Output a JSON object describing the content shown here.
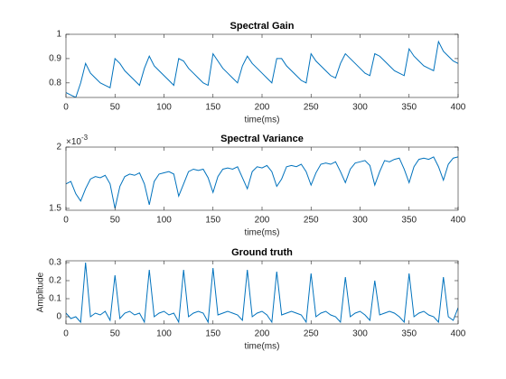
{
  "chart_data": [
    {
      "type": "line",
      "title": "Spectral Gain",
      "xlabel": "time(ms)",
      "x": [
        0,
        5,
        10,
        15,
        20,
        25,
        30,
        35,
        40,
        45,
        50,
        55,
        60,
        65,
        70,
        75,
        80,
        85,
        90,
        95,
        100,
        105,
        110,
        115,
        120,
        125,
        130,
        135,
        140,
        145,
        150,
        155,
        160,
        165,
        170,
        175,
        180,
        185,
        190,
        195,
        200,
        205,
        210,
        215,
        220,
        225,
        230,
        235,
        240,
        245,
        250,
        255,
        260,
        265,
        270,
        275,
        280,
        285,
        290,
        295,
        300,
        305,
        310,
        315,
        320,
        325,
        330,
        335,
        340,
        345,
        350,
        355,
        360,
        365,
        370,
        375,
        380,
        385,
        390,
        395,
        400
      ],
      "values": [
        0.76,
        0.75,
        0.74,
        0.8,
        0.88,
        0.84,
        0.82,
        0.8,
        0.79,
        0.78,
        0.9,
        0.88,
        0.85,
        0.83,
        0.81,
        0.79,
        0.86,
        0.91,
        0.87,
        0.85,
        0.83,
        0.81,
        0.79,
        0.9,
        0.89,
        0.86,
        0.84,
        0.82,
        0.8,
        0.79,
        0.92,
        0.89,
        0.86,
        0.84,
        0.82,
        0.8,
        0.87,
        0.91,
        0.88,
        0.86,
        0.84,
        0.82,
        0.8,
        0.9,
        0.9,
        0.87,
        0.85,
        0.83,
        0.81,
        0.8,
        0.92,
        0.89,
        0.87,
        0.85,
        0.83,
        0.82,
        0.88,
        0.92,
        0.9,
        0.88,
        0.86,
        0.84,
        0.83,
        0.92,
        0.91,
        0.89,
        0.87,
        0.85,
        0.84,
        0.83,
        0.94,
        0.91,
        0.89,
        0.87,
        0.86,
        0.85,
        0.97,
        0.93,
        0.91,
        0.89,
        0.88
      ],
      "color": "#0072bd",
      "xlim": [
        0,
        400
      ],
      "xticks": [
        0,
        50,
        100,
        150,
        200,
        250,
        300,
        350,
        400
      ],
      "ylim": [
        0.74,
        1
      ],
      "yticks": [
        0.8,
        0.9,
        1
      ]
    },
    {
      "type": "line",
      "title": "Spectral Variance",
      "xlabel": "time(ms)",
      "y_multiplier": {
        "base": "×10",
        "exponent": "-3"
      },
      "x": [
        0,
        5,
        10,
        15,
        20,
        25,
        30,
        35,
        40,
        45,
        50,
        55,
        60,
        65,
        70,
        75,
        80,
        85,
        90,
        95,
        100,
        105,
        110,
        115,
        120,
        125,
        130,
        135,
        140,
        145,
        150,
        155,
        160,
        165,
        170,
        175,
        180,
        185,
        190,
        195,
        200,
        205,
        210,
        215,
        220,
        225,
        230,
        235,
        240,
        245,
        250,
        255,
        260,
        265,
        270,
        275,
        280,
        285,
        290,
        295,
        300,
        305,
        310,
        315,
        320,
        325,
        330,
        335,
        340,
        345,
        350,
        355,
        360,
        365,
        370,
        375,
        380,
        385,
        390,
        395,
        400
      ],
      "values": [
        0.0017,
        0.00172,
        0.00162,
        0.00156,
        0.00166,
        0.00174,
        0.00176,
        0.00175,
        0.00177,
        0.0017,
        0.0015,
        0.00168,
        0.00176,
        0.00178,
        0.00177,
        0.00179,
        0.0017,
        0.00153,
        0.00172,
        0.00178,
        0.00179,
        0.0018,
        0.00178,
        0.0016,
        0.0017,
        0.0018,
        0.00182,
        0.00181,
        0.00182,
        0.00175,
        0.00163,
        0.00176,
        0.00182,
        0.00183,
        0.00182,
        0.00184,
        0.00175,
        0.00166,
        0.0018,
        0.00184,
        0.00183,
        0.00185,
        0.0018,
        0.00168,
        0.00174,
        0.00184,
        0.00185,
        0.00184,
        0.00186,
        0.0018,
        0.00169,
        0.00179,
        0.00186,
        0.00187,
        0.00186,
        0.00188,
        0.0018,
        0.00171,
        0.00182,
        0.00187,
        0.00188,
        0.00189,
        0.00185,
        0.00169,
        0.0018,
        0.00189,
        0.00188,
        0.0019,
        0.00191,
        0.00182,
        0.00171,
        0.00184,
        0.0019,
        0.00191,
        0.0019,
        0.00192,
        0.00184,
        0.00173,
        0.00186,
        0.00191,
        0.00192
      ],
      "color": "#0072bd",
      "xlim": [
        0,
        400
      ],
      "xticks": [
        0,
        50,
        100,
        150,
        200,
        250,
        300,
        350,
        400
      ],
      "ylim": [
        0.001485,
        0.002
      ],
      "yticks": [
        {
          "value": 0.0015,
          "label": "1.5"
        },
        {
          "value": 0.002,
          "label": "2"
        }
      ]
    },
    {
      "type": "line",
      "title": "Ground truth",
      "xlabel": "time(ms)",
      "ylabel": "Amplitude",
      "x": [
        0,
        5,
        10,
        15,
        20,
        25,
        30,
        35,
        40,
        45,
        50,
        55,
        60,
        65,
        70,
        75,
        80,
        85,
        90,
        95,
        100,
        105,
        110,
        115,
        120,
        125,
        130,
        135,
        140,
        145,
        150,
        155,
        160,
        165,
        170,
        175,
        180,
        185,
        190,
        195,
        200,
        205,
        210,
        215,
        220,
        225,
        230,
        235,
        240,
        245,
        250,
        255,
        260,
        265,
        270,
        275,
        280,
        285,
        290,
        295,
        300,
        305,
        310,
        315,
        320,
        325,
        330,
        335,
        340,
        345,
        350,
        355,
        360,
        365,
        370,
        375,
        380,
        385,
        390,
        395,
        400
      ],
      "values": [
        0.02,
        -0.01,
        0,
        -0.03,
        0.3,
        0,
        0.02,
        0.01,
        0.03,
        -0.02,
        0.23,
        -0.01,
        0.02,
        0.03,
        0.01,
        0.02,
        -0.03,
        0.26,
        0,
        0.02,
        0.03,
        0.01,
        0.02,
        -0.03,
        0.26,
        0,
        0.02,
        0.03,
        0.02,
        -0.03,
        0.27,
        0.01,
        0.02,
        0.03,
        0.02,
        0.01,
        -0.02,
        0.26,
        0,
        0.02,
        0.03,
        0.01,
        -0.03,
        0.25,
        0.01,
        0.02,
        0.03,
        0.02,
        0.01,
        -0.03,
        0.24,
        0,
        0.02,
        0.03,
        0.01,
        0,
        -0.03,
        0.22,
        0,
        0.02,
        0.03,
        0.01,
        -0.02,
        0.2,
        0.01,
        0.02,
        0.03,
        0.02,
        0,
        -0.03,
        0.24,
        0,
        0.02,
        0.03,
        0.01,
        0,
        -0.03,
        0.22,
        0,
        -0.02,
        0.05
      ],
      "color": "#0072bd",
      "xlim": [
        0,
        400
      ],
      "xticks": [
        0,
        50,
        100,
        150,
        200,
        250,
        300,
        350,
        400
      ],
      "ylim": [
        -0.04,
        0.31
      ],
      "yticks": [
        0,
        0.1,
        0.2,
        0.3
      ]
    }
  ]
}
